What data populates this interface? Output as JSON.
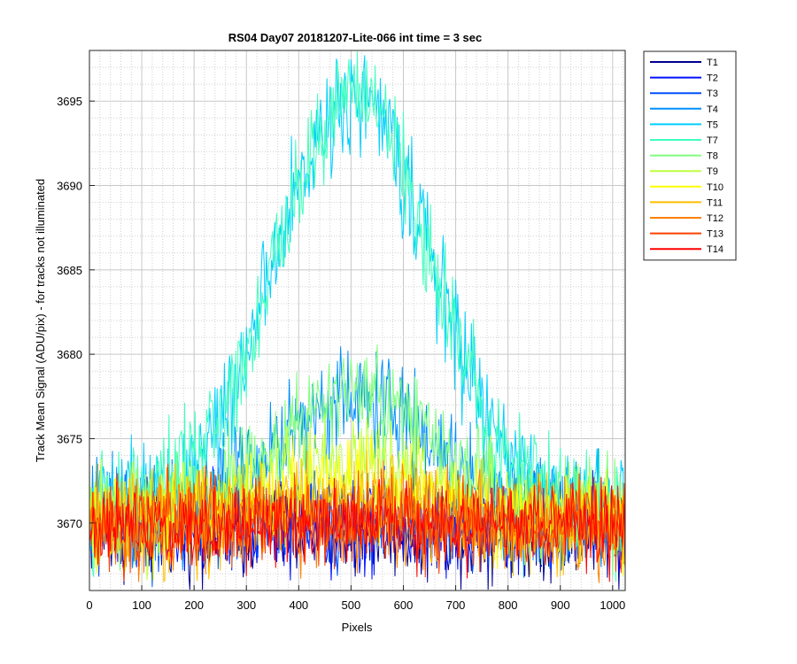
{
  "chart_data": {
    "type": "line",
    "title": "RS04 Day07 20181207-Lite-066 int time = 3 sec",
    "xlabel": "Pixels",
    "ylabel": "Track Mean Signal (ADU/pix) - for tracks not illuminated",
    "xlim": [
      0,
      1024
    ],
    "ylim": [
      3666,
      3698
    ],
    "xticks": [
      "0",
      "100",
      "200",
      "300",
      "400",
      "500",
      "600",
      "700",
      "800",
      "900",
      "1000"
    ],
    "yticks": [
      "3670",
      "3675",
      "3680",
      "3685",
      "3690",
      "3695"
    ],
    "grid": "major and minor",
    "legend_position": "outside-right-top",
    "series": [
      {
        "name": "T1",
        "color": "#00008f",
        "baseline": 3669.6,
        "peak": 0,
        "noise": 1.4
      },
      {
        "name": "T2",
        "color": "#0010ff",
        "baseline": 3669.7,
        "peak": 0,
        "noise": 1.4
      },
      {
        "name": "T3",
        "color": "#0050ff",
        "baseline": 3669.8,
        "peak": 0.5,
        "noise": 1.4
      },
      {
        "name": "T4",
        "color": "#0090ff",
        "baseline": 3670.5,
        "peak": 6.8,
        "noise": 1.6
      },
      {
        "name": "T5",
        "color": "#00cfff",
        "baseline": 3670.8,
        "peak": 24.5,
        "noise": 1.6
      },
      {
        "name": "T7",
        "color": "#40ffbf",
        "baseline": 3670.8,
        "peak": 24.7,
        "noise": 1.6
      },
      {
        "name": "T8",
        "color": "#80ff80",
        "baseline": 3670.5,
        "peak": 7.0,
        "noise": 1.5
      },
      {
        "name": "T9",
        "color": "#bfff40",
        "baseline": 3670.3,
        "peak": 3.5,
        "noise": 1.4
      },
      {
        "name": "T10",
        "color": "#ffff00",
        "baseline": 3670.2,
        "peak": 2.2,
        "noise": 1.4
      },
      {
        "name": "T11",
        "color": "#ffbf00",
        "baseline": 3670.0,
        "peak": 1.2,
        "noise": 1.4
      },
      {
        "name": "T12",
        "color": "#ff8000",
        "baseline": 3669.9,
        "peak": 0.6,
        "noise": 1.4
      },
      {
        "name": "T13",
        "color": "#ff4000",
        "baseline": 3669.8,
        "peak": 0.3,
        "noise": 1.4
      },
      {
        "name": "T14",
        "color": "#ff0000",
        "baseline": 3669.8,
        "peak": 0.2,
        "noise": 1.2
      }
    ]
  }
}
